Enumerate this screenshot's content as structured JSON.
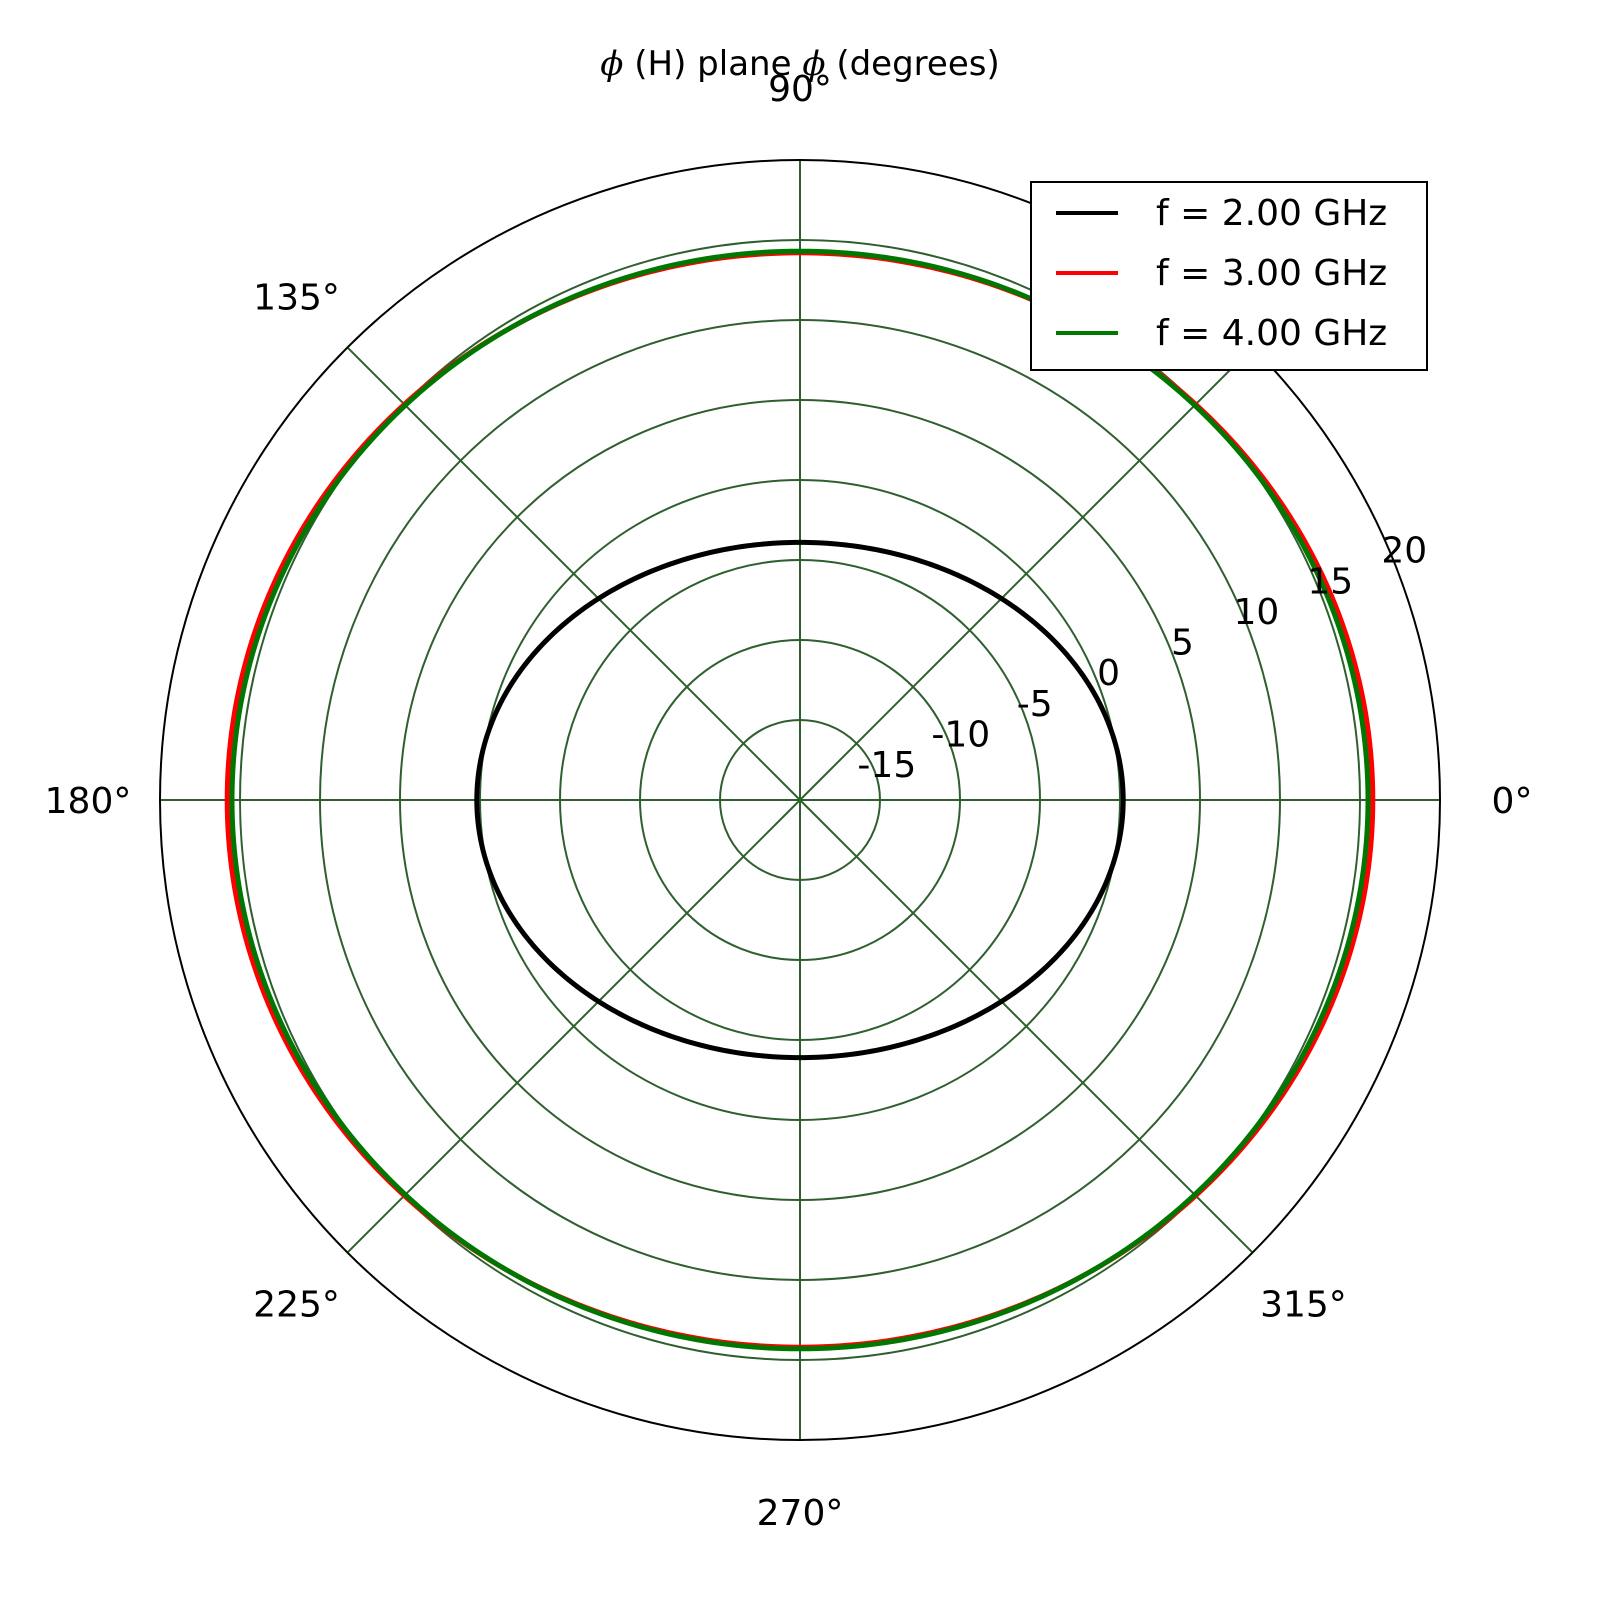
{
  "chart_data": {
    "type": "polar",
    "title": {
      "prefix_symbol": "ϕ",
      "middle_text": " (H) plane ",
      "suffix_symbol": "ϕ",
      "end_text": " (degrees)"
    },
    "theta_unit": "degrees",
    "theta_ticks": [
      0,
      45,
      90,
      135,
      180,
      225,
      270,
      315
    ],
    "theta_tick_labels": [
      "0°",
      "",
      "90°",
      "135°",
      "180°",
      "225°",
      "270°",
      "315°"
    ],
    "r_lim": [
      -20,
      20
    ],
    "r_ticks": [
      -15,
      -10,
      -5,
      0,
      5,
      10,
      15,
      20
    ],
    "r_tick_labels": [
      "-15",
      "-10",
      "-5",
      "0",
      "5",
      "10",
      "15",
      "20"
    ],
    "grid": true,
    "grid_color": "#2f5f2f",
    "legend_position": "top-right",
    "series": [
      {
        "name": "f = 2.00 GHz",
        "color": "#000000",
        "gain_at_0deg": 0.2,
        "gain_at_90deg": -3.9
      },
      {
        "name": "f = 3.00 GHz",
        "color": "#ff0000",
        "gain_at_0deg": 15.8,
        "gain_at_90deg": 14.2
      },
      {
        "name": "f = 4.00 GHz",
        "color": "#007700",
        "gain_at_0deg": 15.5,
        "gain_at_90deg": 14.3
      }
    ]
  }
}
